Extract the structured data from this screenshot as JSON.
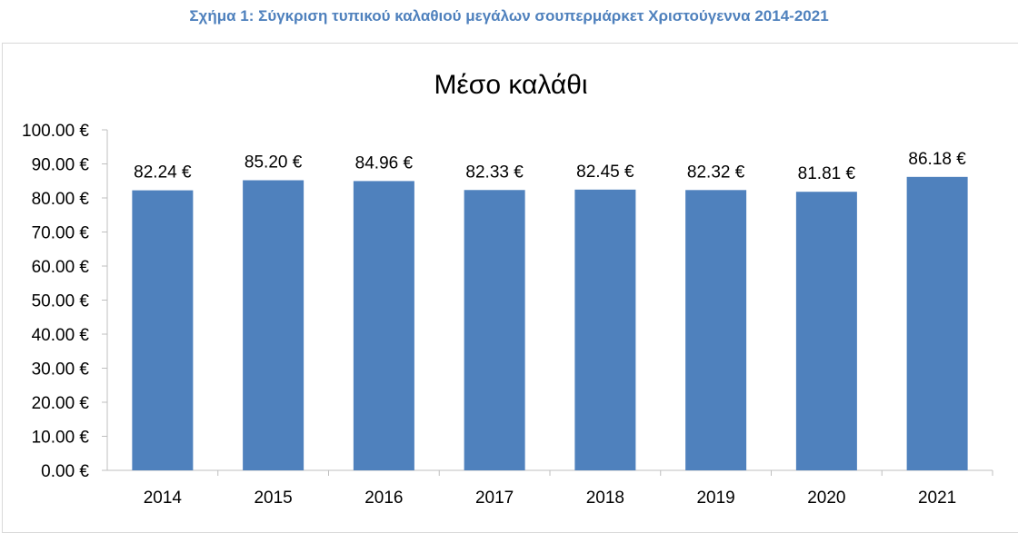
{
  "page": {
    "caption": "Σχήμα 1: Σύγκριση τυπικού καλαθιού μεγάλων σουπερμάρκετ Χριστούγεννα 2014-2021"
  },
  "colors": {
    "bar": "#4f81bd",
    "caption": "#4f81bd",
    "axis": "#bfbfbf"
  },
  "chart_data": {
    "type": "bar",
    "title": "Μέσο καλάθι",
    "categories": [
      "2014",
      "2015",
      "2016",
      "2017",
      "2018",
      "2019",
      "2020",
      "2021"
    ],
    "values": [
      82.24,
      85.2,
      84.96,
      82.33,
      82.45,
      82.32,
      81.81,
      86.18
    ],
    "data_labels": [
      "82.24 €",
      "85.20 €",
      "84.96 €",
      "82.33 €",
      "82.45 €",
      "82.32 €",
      "81.81 €",
      "86.18 €"
    ],
    "y_ticks": [
      "0.00 €",
      "10.00 €",
      "20.00 €",
      "30.00 €",
      "40.00 €",
      "50.00 €",
      "60.00 €",
      "70.00 €",
      "80.00 €",
      "90.00 €",
      "100.00 €"
    ],
    "ylim": [
      0,
      100
    ],
    "xlabel": "",
    "ylabel": "",
    "grid": false,
    "legend": "none"
  }
}
